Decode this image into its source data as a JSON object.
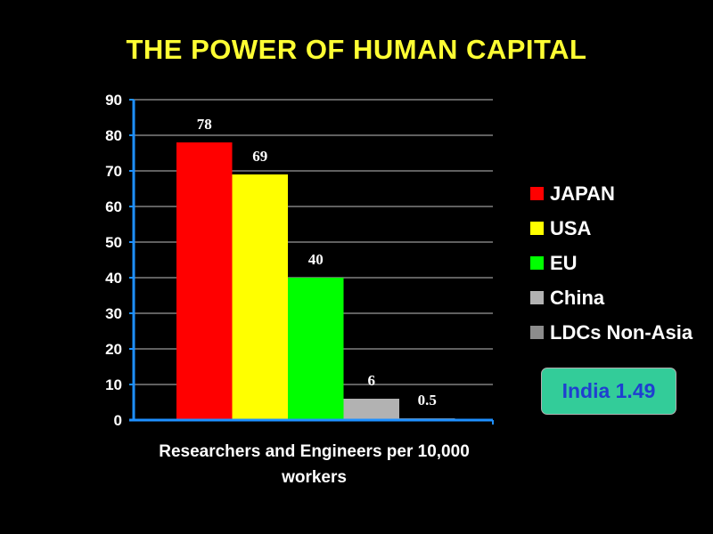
{
  "chart_data": {
    "type": "bar",
    "title": "THE POWER OF HUMAN CAPITAL",
    "xlabel": "Researchers and Engineers per 10,000 workers",
    "ylabel": "",
    "ylim": [
      0,
      90
    ],
    "yticks": [
      0,
      10,
      20,
      30,
      40,
      50,
      60,
      70,
      80,
      90
    ],
    "grid": true,
    "legend": "right",
    "series": [
      {
        "name": "JAPAN",
        "value": 78,
        "label": "78",
        "color": "#ff0000"
      },
      {
        "name": "USA",
        "value": 69,
        "label": "69",
        "color": "#ffff00"
      },
      {
        "name": "EU",
        "value": 40,
        "label": "40",
        "color": "#00ff00"
      },
      {
        "name": "China",
        "value": 6,
        "label": "6",
        "color": "#b2b2b2"
      },
      {
        "name": "LDCs Non-Asia",
        "value": 0.5,
        "label": "0.5",
        "color": "#8c8c8c"
      }
    ],
    "annotation": "India 1.49",
    "axis_color": "#1e90ff",
    "grid_color": "#c0c0c0"
  }
}
